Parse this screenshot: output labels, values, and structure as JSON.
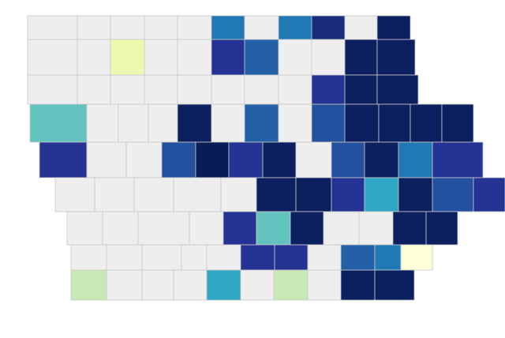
{
  "map": {
    "rows": [
      {
        "colors": [
          "#eeeeee",
          "#eeeeee",
          "#eeeeee",
          "#eeeeee",
          "#eeeeee",
          "#2079b4",
          "#eeeeee",
          "#2079b4",
          "#182c7a",
          "#eeeeee",
          "#0c2060"
        ]
      },
      {
        "colors": [
          "#eeeeee",
          "#eeeeee",
          "#edf8b1",
          "#eeeeee",
          "#eeeeee",
          "#253494",
          "#2460a7",
          "#eeeeee",
          "#eeeeee",
          "#0c2060",
          "#0c2060"
        ]
      },
      {
        "colors": [
          "#eeeeee",
          "#eeeeee",
          "#eeeeee",
          "#eeeeee",
          "#eeeeee",
          "#eeeeee",
          "#eeeeee",
          "#eeeeee",
          "#253494",
          "#0c2060",
          "#0c2060"
        ]
      },
      {
        "colors": [
          "#63c3bf",
          "#eeeeee",
          "#eeeeee",
          "#eeeeee",
          "#0c2060",
          "#eeeeee",
          "#2460a7",
          "#eeeeee",
          "#2450a0",
          "#0c2060",
          "#0c2060",
          "#0c2060",
          "#0c2060"
        ]
      },
      {
        "colors": [
          "#253494",
          "#eeeeee",
          "#eeeeee",
          "#2450a0",
          "#081d58",
          "#253494",
          "#0c2060",
          "#eeeeee",
          "#2450a0",
          "#0c2060",
          "#2079b4",
          "#253494"
        ]
      },
      {
        "colors": [
          "#eeeeee",
          "#eeeeee",
          "#eeeeee",
          "#eeeeee",
          "#eeeeee",
          "#0c2060",
          "#0c2060",
          "#253494",
          "#2ea8c4",
          "#0c2060",
          "#2450a0",
          "#253494"
        ]
      },
      {
        "colors": [
          "#eeeeee",
          "#eeeeee",
          "#eeeeee",
          "#eeeeee",
          "#253494",
          "#63c3bf",
          "#0c2060",
          "#eeeeee",
          "#eeeeee",
          "#0c2060",
          "#0c2060"
        ]
      },
      {
        "colors": [
          "#eeeeee",
          "#eeeeee",
          "#eeeeee",
          "#eeeeee",
          "#eeeeee",
          "#253494",
          "#253494",
          "#eeeeee",
          "#2460a7",
          "#2079b4",
          "#ffffd9"
        ]
      },
      {
        "colors": [
          "#c7e9b4",
          "#eeeeee",
          "#eeeeee",
          "#eeeeee",
          "#2ea8c4",
          "#eeeeee",
          "#c7e9b4",
          "#eeeeee",
          "#0c2060",
          "#0c2060"
        ]
      }
    ]
  }
}
